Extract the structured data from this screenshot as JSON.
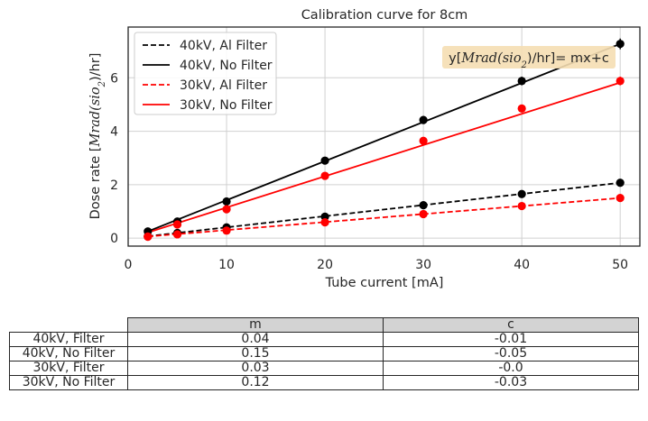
{
  "chart_data": {
    "type": "line",
    "title": "Calibration curve for 8cm",
    "xlabel": "Tube current [mA]",
    "ylabel_prefix": "Dose rate [",
    "ylabel_math": "Mrad(sio",
    "ylabel_sub": "2",
    "ylabel_suffix": ")/hr]",
    "xlim": [
      0,
      52
    ],
    "ylim": [
      -0.3,
      7.9
    ],
    "xticks": [
      0,
      10,
      20,
      30,
      40,
      50
    ],
    "yticks": [
      0,
      2,
      4,
      6
    ],
    "grid": true,
    "legend_position": "top-left",
    "annotation": {
      "prefix": "y[",
      "math": "Mrad(sio",
      "sub": "2",
      "suffix": ")/hr]= mx+c",
      "box_color": "#f5deb3"
    },
    "x": [
      2,
      5,
      10,
      20,
      30,
      40,
      50
    ],
    "series": [
      {
        "name": "40kV, Al Filter",
        "color": "#000000",
        "dash": true,
        "fit": [
          0.04,
          -0.01
        ],
        "points": [
          0.07,
          0.19,
          0.4,
          0.8,
          1.23,
          1.65,
          2.07
        ],
        "errors": [
          0.03,
          0.03,
          0.03,
          0.05,
          0.05,
          0.07,
          0.07
        ]
      },
      {
        "name": "40kV, No Filter",
        "color": "#000000",
        "dash": false,
        "fit": [
          0.15,
          -0.05
        ],
        "points": [
          0.25,
          0.62,
          1.37,
          2.9,
          4.42,
          5.88,
          7.27
        ],
        "errors": [
          0.05,
          0.05,
          0.06,
          0.1,
          0.15,
          0.16,
          0.2
        ]
      },
      {
        "name": "30kV, Al Filter",
        "color": "#ff0000",
        "dash": true,
        "fit": [
          0.03,
          -0.0
        ],
        "points": [
          0.06,
          0.14,
          0.28,
          0.59,
          0.9,
          1.2,
          1.5
        ],
        "errors": [
          0.03,
          0.03,
          0.03,
          0.04,
          0.05,
          0.06,
          0.06
        ]
      },
      {
        "name": "30kV, No Filter",
        "color": "#ff0000",
        "dash": false,
        "fit": [
          0.12,
          -0.03
        ],
        "points": [
          0.05,
          0.51,
          1.08,
          2.33,
          3.64,
          4.85,
          5.88
        ],
        "errors": [
          0.03,
          0.04,
          0.06,
          0.08,
          0.1,
          0.14,
          0.16
        ]
      }
    ],
    "fit_line_values": {
      "40kV, Al Filter": [
        [
          2,
          0.07
        ],
        [
          50,
          2.07
        ]
      ],
      "40kV, No Filter": [
        [
          2,
          0.25
        ],
        [
          50,
          7.27
        ]
      ],
      "30kV, Al Filter": [
        [
          2,
          0.06
        ],
        [
          50,
          1.5
        ]
      ],
      "30kV, No Filter": [
        [
          2,
          0.21
        ],
        [
          50,
          5.82
        ]
      ]
    }
  },
  "table": {
    "columns": [
      "m",
      "c"
    ],
    "rows": [
      {
        "label": "40kV, Filter",
        "m": "0.04",
        "c": "-0.01"
      },
      {
        "label": "40kV, No Filter",
        "m": "0.15",
        "c": "-0.05"
      },
      {
        "label": "30kV, Filter",
        "m": "0.03",
        "c": "-0.0"
      },
      {
        "label": "30kV, No Filter",
        "m": "0.12",
        "c": "-0.03"
      }
    ]
  }
}
